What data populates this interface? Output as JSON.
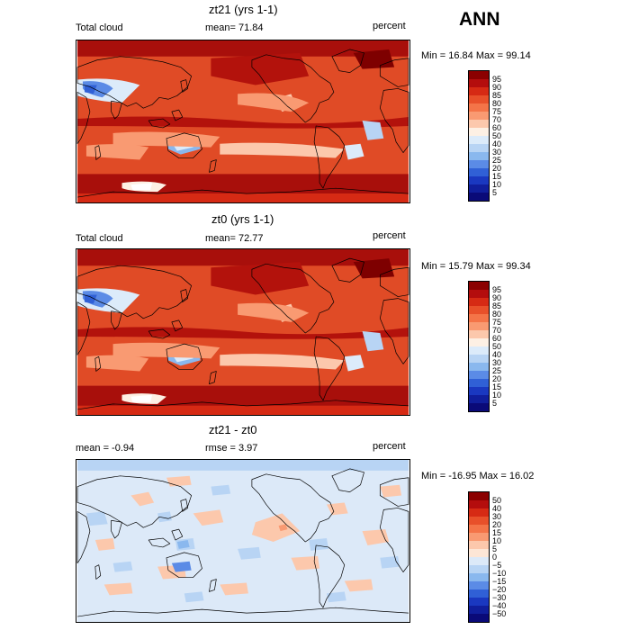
{
  "season": "ANN",
  "panels": [
    {
      "title": "zt21 (yrs 1-1)",
      "left_label": "Total cloud",
      "center_label": "mean=  71.84",
      "right_label": "percent",
      "minmax": "Min =  16.84 Max =  99.14",
      "map_type": "total",
      "colorbar_labels": [
        "95",
        "90",
        "85",
        "80",
        "75",
        "70",
        "60",
        "50",
        "40",
        "30",
        "25",
        "20",
        "15",
        "10",
        "5"
      ],
      "colorbar_colors": [
        "#8b0000",
        "#b40d0d",
        "#d62a14",
        "#e8502a",
        "#f47448",
        "#f99a72",
        "#fcc8ac",
        "#fdf0e4",
        "#dcebfa",
        "#b8d4f4",
        "#8ab8ee",
        "#5b8be6",
        "#3060d6",
        "#1a38c0",
        "#101e9c",
        "#0a0a78"
      ]
    },
    {
      "title": "zt0 (yrs 1-1)",
      "left_label": "Total cloud",
      "center_label": "mean=  72.77",
      "right_label": "percent",
      "minmax": "Min =  15.79 Max =  99.34",
      "map_type": "total",
      "colorbar_labels": [
        "95",
        "90",
        "85",
        "80",
        "75",
        "70",
        "60",
        "50",
        "40",
        "30",
        "25",
        "20",
        "15",
        "10",
        "5"
      ],
      "colorbar_colors": [
        "#8b0000",
        "#b40d0d",
        "#d62a14",
        "#e8502a",
        "#f47448",
        "#f99a72",
        "#fcc8ac",
        "#fdf0e4",
        "#dcebfa",
        "#b8d4f4",
        "#8ab8ee",
        "#5b8be6",
        "#3060d6",
        "#1a38c0",
        "#101e9c",
        "#0a0a78"
      ]
    },
    {
      "title": "zt21 - zt0",
      "left_label": "mean =   -0.94",
      "center_label": "rmse =    3.97",
      "right_label": "percent",
      "minmax": "Min = -16.95 Max =  16.02",
      "map_type": "diff",
      "colorbar_labels": [
        "50",
        "40",
        "30",
        "20",
        "15",
        "10",
        "5",
        "0",
        "−5",
        "−10",
        "−15",
        "−20",
        "−30",
        "−40",
        "−50"
      ],
      "colorbar_colors": [
        "#8b0000",
        "#b40d0d",
        "#d62a14",
        "#e8502a",
        "#f47448",
        "#f99a72",
        "#fcc8ac",
        "#fde6d6",
        "#dce9f8",
        "#b8d4f4",
        "#8ab8ee",
        "#5b8be6",
        "#3060d6",
        "#1a38c0",
        "#101e9c",
        "#0a0a78"
      ]
    }
  ]
}
